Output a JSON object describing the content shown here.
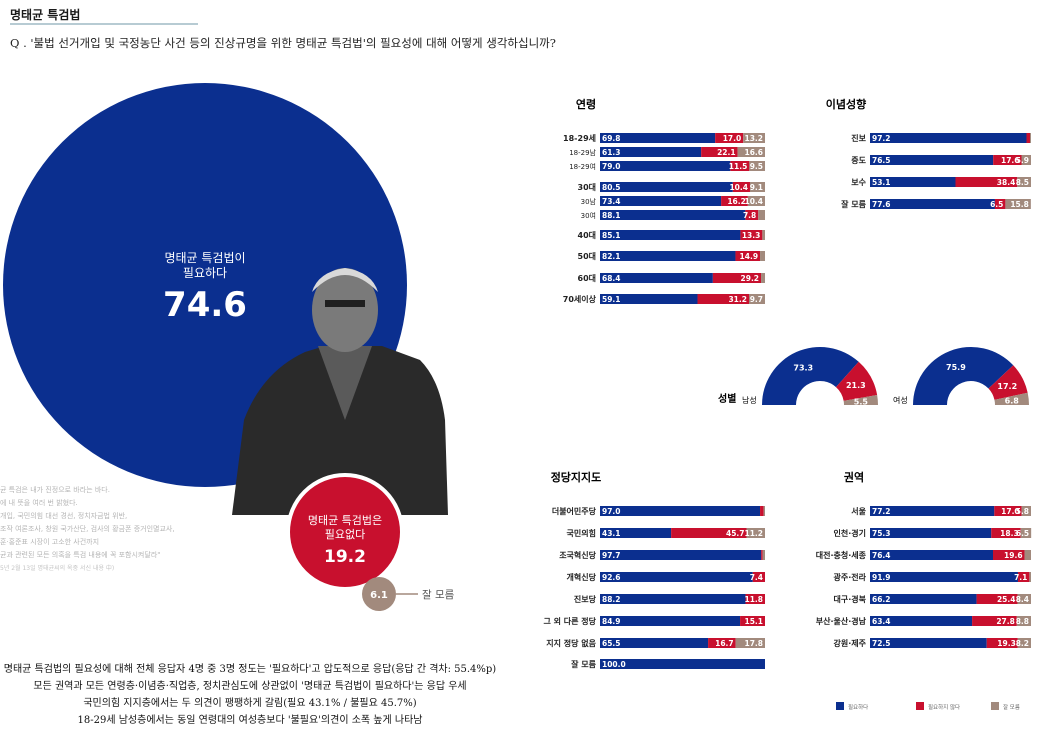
{
  "header": {
    "title": "명태균 특검법",
    "question": "Q . '불법 선거개입 및 국정농단 사건 등의 진상규명을 위한 명태균 특검법'의 필요성에 대해 어떻게 생각하십니까?"
  },
  "colors": {
    "need": "#0b2f8f",
    "no_need": "#c8102e",
    "unknown": "#a28a7d"
  },
  "overall": {
    "need_label_1": "명태균 특검법이",
    "need_label_2": "필요하다",
    "need_value": "74.6",
    "no_label_1": "명태균 특검법은",
    "no_label_2": "필요없다",
    "no_value": "19.2",
    "unknown_value": "6.1",
    "unknown_label": "잘 모름"
  },
  "quote": {
    "lines": [
      "균 특검은 내가 진정으로 바라는 바다.",
      "에 내 뜻을 여러 번 밝혔다.",
      "개입, 국민의힘 대선 경선, 정치자금법 위반,",
      "조작 여론조사, 창원 국가산단, 검사의 황금폰 증거인멸교사,",
      "훈·홍준표 시장이 고소한 사건까지",
      "균과 관련된 모든 의혹을 특검 내용에 꼭 포함시켜달라\"",
      "5년 2월 13일 명태균씨의 옥중 서신 내용 中)"
    ]
  },
  "summary": [
    "명태균 특검법의 필요성에 대해 전체 응답자 4명 중 3명 정도는 '필요하다'고 압도적으로 응답(응답 간 격차: 55.4%p)",
    "모든 권역과 모든 연령층·이념층·직업층, 정치관심도에 상관없이 '명태균 특검법이 필요하다'는 응답 우세",
    "국민의힘 지지층에서는 두 의견이 팽팽하게 갈림(필요 43.1% / 불필요 45.7%)",
    "18-29세 남성층에서는 동일 연령대의 여성층보다 '불필요'의견이 소폭 높게 나타남"
  ],
  "gender": {
    "title": "성별",
    "male_label": "남성",
    "female_label": "여성",
    "male": [
      73.3,
      21.3,
      5.5
    ],
    "female": [
      75.9,
      17.2,
      6.8
    ]
  },
  "legend": {
    "need": "필요하다",
    "no_need": "필요하지 않다",
    "unknown": "잘 모름"
  },
  "chart_data": [
    {
      "type": "pie",
      "title": "",
      "categories": [
        "명태균 특검법이 필요하다",
        "명태균 특검법은 필요없다",
        "잘 모름"
      ],
      "values": [
        74.6,
        19.2,
        6.1
      ]
    },
    {
      "type": "bar",
      "title": "연령",
      "categories": [
        "18-29세",
        "18-29남",
        "18-29여",
        "30대",
        "30남",
        "30여",
        "40대",
        "50대",
        "60대",
        "70세이상"
      ],
      "series": [
        {
          "name": "필요하다",
          "values": [
            69.8,
            61.3,
            79.0,
            80.5,
            73.4,
            88.1,
            85.1,
            82.1,
            68.4,
            59.1
          ]
        },
        {
          "name": "필요하지 않다",
          "values": [
            17.0,
            22.1,
            11.5,
            10.4,
            16.2,
            7.8,
            13.3,
            14.9,
            29.2,
            31.2
          ]
        },
        {
          "name": "잘 모름",
          "values": [
            13.2,
            16.6,
            9.5,
            9.1,
            10.4,
            4.1,
            1.6,
            3.0,
            2.4,
            9.7
          ]
        }
      ]
    },
    {
      "type": "bar",
      "title": "이념성향",
      "categories": [
        "진보",
        "중도",
        "보수",
        "잘 모름"
      ],
      "series": [
        {
          "name": "필요하다",
          "values": [
            97.2,
            76.5,
            53.1,
            77.6
          ]
        },
        {
          "name": "필요하지 않다",
          "values": [
            2.2,
            17.6,
            38.4,
            6.5
          ]
        },
        {
          "name": "잘 모름",
          "values": [
            0.6,
            5.9,
            8.5,
            15.8
          ]
        }
      ]
    },
    {
      "type": "pie",
      "title": "성별",
      "categories": [
        "남성",
        "여성"
      ],
      "series": [
        {
          "name": "필요하다",
          "values": [
            73.3,
            75.9
          ]
        },
        {
          "name": "필요하지 않다",
          "values": [
            21.3,
            17.2
          ]
        },
        {
          "name": "잘 모름",
          "values": [
            5.5,
            6.8
          ]
        }
      ]
    },
    {
      "type": "bar",
      "title": "정당지지도",
      "categories": [
        "더불어민주당",
        "국민의힘",
        "조국혁신당",
        "개혁신당",
        "진보당",
        "그 외 다른 정당",
        "지지 정당 없음",
        "잘 모름"
      ],
      "series": [
        {
          "name": "필요하다",
          "values": [
            97.0,
            43.1,
            97.7,
            92.6,
            88.2,
            84.9,
            65.5,
            100.0
          ]
        },
        {
          "name": "필요하지 않다",
          "values": [
            2.2,
            45.7,
            0.9,
            7.4,
            11.8,
            15.1,
            16.7,
            0.0
          ]
        },
        {
          "name": "잘 모름",
          "values": [
            0.8,
            11.2,
            1.4,
            0.0,
            0.0,
            0.0,
            17.8,
            0.0
          ]
        }
      ]
    },
    {
      "type": "bar",
      "title": "권역",
      "categories": [
        "서울",
        "인천·경기",
        "대전·충청·세종",
        "광주·전라",
        "대구·경북",
        "부산·울산·경남",
        "강원·제주"
      ],
      "series": [
        {
          "name": "필요하다",
          "values": [
            77.2,
            75.3,
            76.4,
            91.9,
            66.2,
            63.4,
            72.5
          ]
        },
        {
          "name": "필요하지 않다",
          "values": [
            17.0,
            18.3,
            19.6,
            7.1,
            25.4,
            27.8,
            19.3
          ]
        },
        {
          "name": "잘 모름",
          "values": [
            5.8,
            6.5,
            4.0,
            1.0,
            8.4,
            8.8,
            8.2
          ]
        }
      ]
    }
  ]
}
